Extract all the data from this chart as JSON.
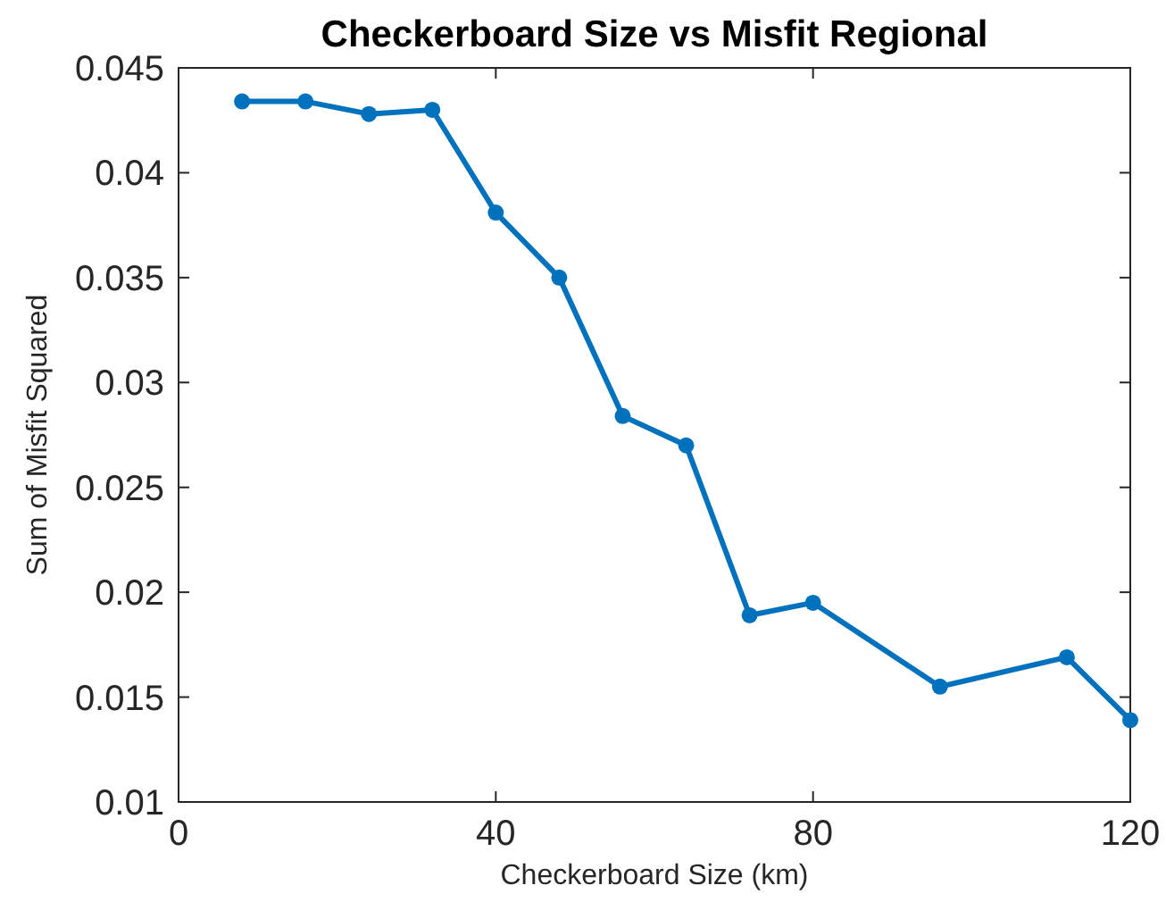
{
  "chart_data": {
    "type": "line",
    "title": "Checkerboard Size vs Misfit Regional",
    "xlabel": "Checkerboard Size (km)",
    "ylabel": "Sum of Misfit Squared",
    "x": [
      8,
      16,
      24,
      32,
      40,
      48,
      56,
      64,
      72,
      80,
      96,
      112,
      120
    ],
    "series": [
      {
        "color": "#0072bd",
        "values": [
          0.0434,
          0.0434,
          0.0428,
          0.043,
          0.0381,
          0.035,
          0.0284,
          0.027,
          0.0189,
          0.0195,
          0.0155,
          0.0169,
          0.0139
        ]
      }
    ],
    "xlim": [
      0,
      120
    ],
    "xticks": [
      0,
      40,
      80,
      120
    ],
    "ylim": [
      0.01,
      0.045
    ],
    "yticks": [
      0.01,
      0.015,
      0.02,
      0.025,
      0.03,
      0.035,
      0.04,
      0.045
    ],
    "grid": false,
    "marker": "circle",
    "line_style": "solid"
  }
}
